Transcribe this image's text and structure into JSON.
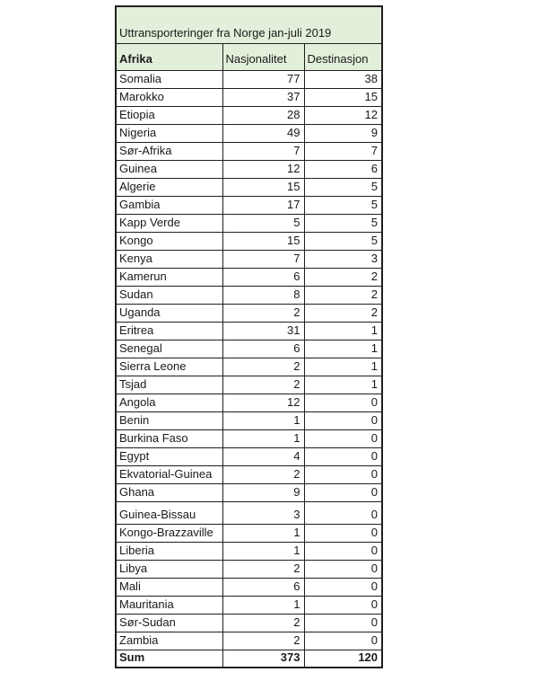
{
  "title": "Uttransporteringer fra Norge jan-juli 2019",
  "table": {
    "region_header": "Afrika",
    "columns": [
      "Nasjonalitet",
      "Destinasjon"
    ],
    "rows": [
      {
        "country": "Somalia",
        "nasjonalitet": 77,
        "destinasjon": 38
      },
      {
        "country": "Marokko",
        "nasjonalitet": 37,
        "destinasjon": 15
      },
      {
        "country": "Etiopia",
        "nasjonalitet": 28,
        "destinasjon": 12
      },
      {
        "country": "Nigeria",
        "nasjonalitet": 49,
        "destinasjon": 9
      },
      {
        "country": "Sør-Afrika",
        "nasjonalitet": 7,
        "destinasjon": 7
      },
      {
        "country": "Guinea",
        "nasjonalitet": 12,
        "destinasjon": 6
      },
      {
        "country": "Algerie",
        "nasjonalitet": 15,
        "destinasjon": 5
      },
      {
        "country": "Gambia",
        "nasjonalitet": 17,
        "destinasjon": 5
      },
      {
        "country": "Kapp Verde",
        "nasjonalitet": 5,
        "destinasjon": 5
      },
      {
        "country": "Kongo",
        "nasjonalitet": 15,
        "destinasjon": 5
      },
      {
        "country": "Kenya",
        "nasjonalitet": 7,
        "destinasjon": 3
      },
      {
        "country": "Kamerun",
        "nasjonalitet": 6,
        "destinasjon": 2
      },
      {
        "country": "Sudan",
        "nasjonalitet": 8,
        "destinasjon": 2
      },
      {
        "country": "Uganda",
        "nasjonalitet": 2,
        "destinasjon": 2
      },
      {
        "country": "Eritrea",
        "nasjonalitet": 31,
        "destinasjon": 1
      },
      {
        "country": "Senegal",
        "nasjonalitet": 6,
        "destinasjon": 1
      },
      {
        "country": "Sierra Leone",
        "nasjonalitet": 2,
        "destinasjon": 1
      },
      {
        "country": "Tsjad",
        "nasjonalitet": 2,
        "destinasjon": 1
      },
      {
        "country": "Angola",
        "nasjonalitet": 12,
        "destinasjon": 0
      },
      {
        "country": "Benin",
        "nasjonalitet": 1,
        "destinasjon": 0
      },
      {
        "country": "Burkina Faso",
        "nasjonalitet": 1,
        "destinasjon": 0
      },
      {
        "country": "Egypt",
        "nasjonalitet": 4,
        "destinasjon": 0
      },
      {
        "country": "Ekvatorial-Guinea",
        "nasjonalitet": 2,
        "destinasjon": 0
      },
      {
        "country": "Ghana",
        "nasjonalitet": 9,
        "destinasjon": 0
      },
      {
        "country": "Guinea-Bissau",
        "nasjonalitet": 3,
        "destinasjon": 0,
        "tall": true
      },
      {
        "country": "Kongo-Brazzaville",
        "nasjonalitet": 1,
        "destinasjon": 0
      },
      {
        "country": "Liberia",
        "nasjonalitet": 1,
        "destinasjon": 0
      },
      {
        "country": "Libya",
        "nasjonalitet": 2,
        "destinasjon": 0
      },
      {
        "country": "Mali",
        "nasjonalitet": 6,
        "destinasjon": 0
      },
      {
        "country": "Mauritania",
        "nasjonalitet": 1,
        "destinasjon": 0
      },
      {
        "country": "Sør-Sudan",
        "nasjonalitet": 2,
        "destinasjon": 0
      },
      {
        "country": "Zambia",
        "nasjonalitet": 2,
        "destinasjon": 0
      }
    ],
    "sum": {
      "label": "Sum",
      "nasjonalitet": 373,
      "destinasjon": 120
    }
  },
  "colors": {
    "header_fill_green": "#e2efda",
    "border": "#1f1f1f",
    "text": "#1a1a1a",
    "row_background": "#ffffff"
  }
}
